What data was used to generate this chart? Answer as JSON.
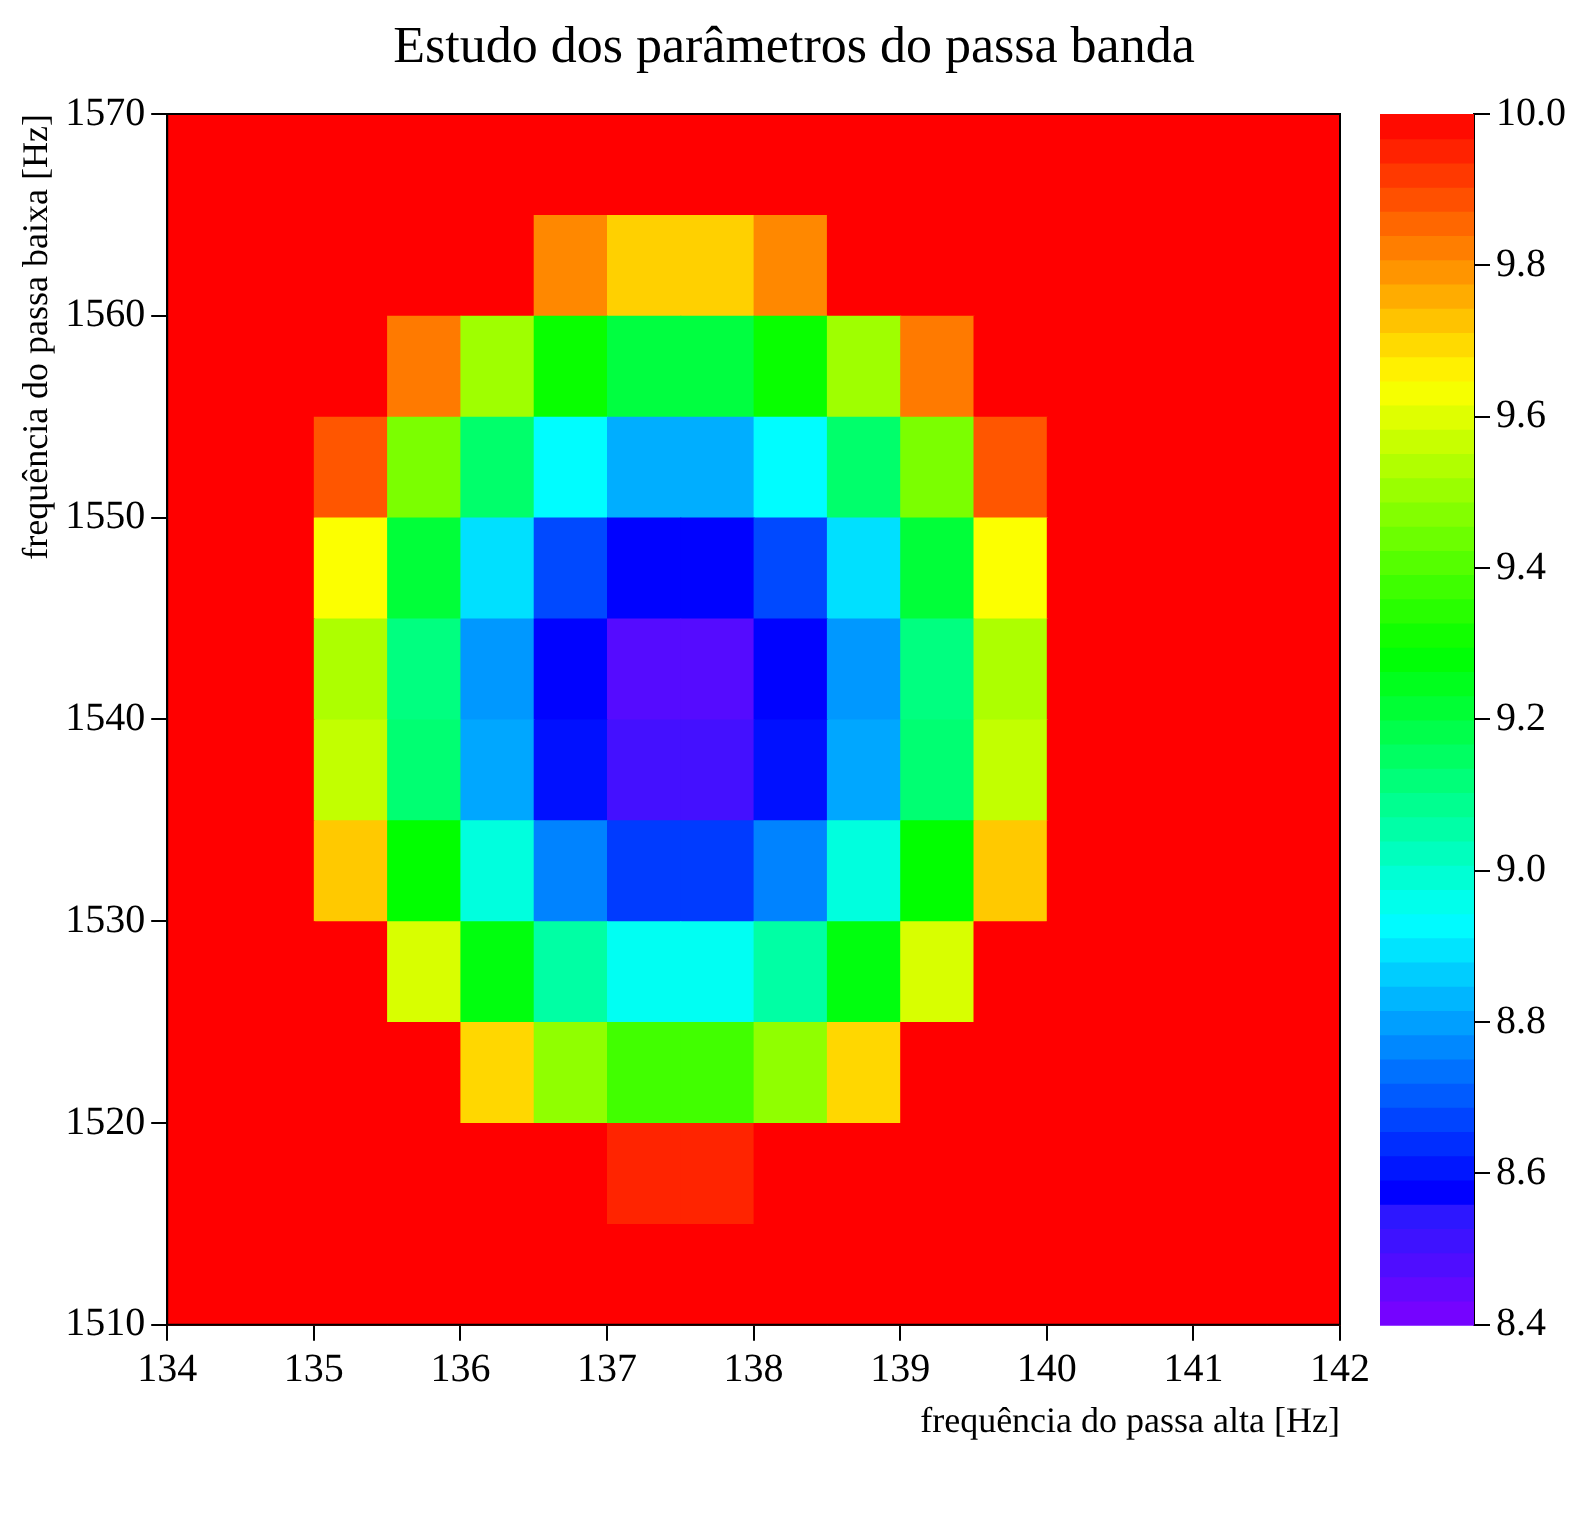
{
  "chart_data": {
    "type": "heatmap",
    "title": "Estudo dos parâmetros do passa banda",
    "xlabel": "frequência do passa alta [Hz]",
    "ylabel": "frequência do passa baixa [Hz]",
    "xlim": [
      134,
      142
    ],
    "ylim": [
      1510,
      1570
    ],
    "xticks": [
      134,
      135,
      136,
      137,
      138,
      139,
      140,
      141,
      142
    ],
    "yticks": [
      1510,
      1520,
      1530,
      1540,
      1550,
      1560,
      1570
    ],
    "clim": [
      8.4,
      10
    ],
    "cticks": [
      8.4,
      8.6,
      8.8,
      {
        "value": 9,
        "label": "9.0"
      },
      9.2,
      9.4,
      9.6,
      9.8,
      {
        "value": 10,
        "label": "10.0"
      }
    ],
    "cells": [
      [
        10,
        10,
        10,
        10,
        10,
        10,
        10,
        10,
        10,
        10,
        10,
        10,
        10,
        10,
        10,
        10
      ],
      [
        10,
        10,
        10,
        10,
        10,
        9.81,
        9.71,
        9.71,
        9.81,
        10,
        10,
        10,
        10,
        10,
        10,
        10
      ],
      [
        10,
        10,
        10,
        9.83,
        9.51,
        9.3,
        9.2,
        9.2,
        9.3,
        9.51,
        9.83,
        10,
        10,
        10,
        10,
        10
      ],
      [
        10,
        10,
        9.88,
        9.46,
        9.14,
        8.93,
        8.82,
        8.82,
        8.93,
        9.14,
        9.46,
        9.88,
        10,
        10,
        10,
        10
      ],
      [
        10,
        10,
        9.64,
        9.21,
        8.89,
        8.68,
        8.58,
        8.58,
        8.68,
        8.89,
        9.21,
        9.64,
        10,
        10,
        10,
        10
      ],
      [
        10,
        10,
        9.53,
        9.11,
        8.79,
        8.58,
        8.47,
        8.47,
        8.58,
        8.79,
        9.11,
        9.53,
        10,
        10,
        10,
        10
      ],
      [
        10,
        10,
        9.56,
        9.13,
        8.81,
        8.6,
        8.5,
        8.5,
        8.6,
        8.81,
        9.13,
        9.56,
        10,
        10,
        10,
        10
      ],
      [
        10,
        10,
        9.72,
        9.29,
        8.98,
        8.76,
        8.66,
        8.66,
        8.76,
        8.98,
        9.29,
        9.72,
        10,
        10,
        10,
        10
      ],
      [
        10,
        10,
        10,
        9.59,
        9.27,
        9.06,
        8.95,
        8.95,
        9.06,
        9.27,
        9.59,
        10,
        10,
        10,
        10,
        10
      ],
      [
        10,
        10,
        10,
        10,
        9.7,
        9.49,
        9.38,
        9.38,
        9.49,
        9.7,
        10,
        10,
        10,
        10,
        10,
        10
      ],
      [
        10,
        10,
        10,
        10,
        10,
        10,
        9.95,
        9.95,
        10,
        10,
        10,
        10,
        10,
        10,
        10,
        10
      ],
      [
        10,
        10,
        10,
        10,
        10,
        10,
        10,
        10,
        10,
        10,
        10,
        10,
        10,
        10,
        10,
        10
      ]
    ]
  }
}
